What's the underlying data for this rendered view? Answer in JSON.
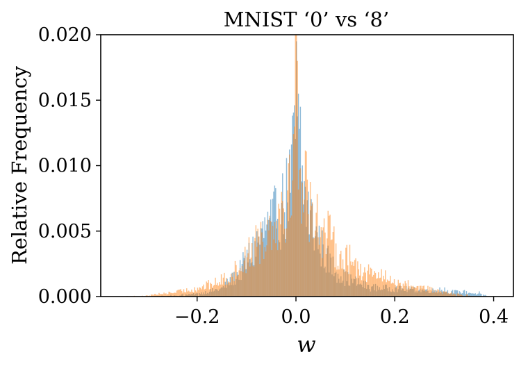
{
  "chart_data": {
    "type": "histogram",
    "title": "MNIST ‘0’ vs ‘8’",
    "xlabel": "w",
    "ylabel": "Relative Frequency",
    "xlim": [
      -0.395,
      0.44
    ],
    "ylim": [
      0,
      0.02
    ],
    "x_ticks": [
      -0.2,
      0.0,
      0.2,
      0.4
    ],
    "x_tick_labels": [
      "−0.2",
      "0.0",
      "0.2",
      "0.4"
    ],
    "y_ticks": [
      0.0,
      0.005,
      0.01,
      0.015,
      0.02
    ],
    "y_tick_labels": [
      "0.000",
      "0.005",
      "0.010",
      "0.015",
      "0.020"
    ],
    "grid": false,
    "legend": "none",
    "bin_width": 0.002,
    "series": [
      {
        "color": "#1f77b4",
        "alpha": 0.5,
        "range": [
          -0.3,
          0.4
        ],
        "profile": [
          [
            -0.3,
            0.0
          ],
          [
            -0.25,
            0.0001
          ],
          [
            -0.2,
            0.0002
          ],
          [
            -0.15,
            0.0006
          ],
          [
            -0.12,
            0.0016
          ],
          [
            -0.09,
            0.0033
          ],
          [
            -0.07,
            0.0046
          ],
          [
            -0.05,
            0.0055
          ],
          [
            -0.03,
            0.0065
          ],
          [
            -0.02,
            0.0074
          ],
          [
            -0.01,
            0.009
          ],
          [
            0.0,
            0.0125
          ],
          [
            0.01,
            0.0095
          ],
          [
            0.02,
            0.0072
          ],
          [
            0.04,
            0.0048
          ],
          [
            0.06,
            0.003
          ],
          [
            0.08,
            0.002
          ],
          [
            0.1,
            0.0014
          ],
          [
            0.15,
            0.0007
          ],
          [
            0.2,
            0.0006
          ],
          [
            0.25,
            0.0005
          ],
          [
            0.3,
            0.0004
          ],
          [
            0.35,
            0.0003
          ],
          [
            0.4,
            0.0
          ]
        ],
        "spikes": [
          [
            0.0,
            0.0195
          ],
          [
            0.004,
            0.0155
          ],
          [
            0.008,
            0.0145
          ],
          [
            -0.06,
            0.0055
          ],
          [
            -0.05,
            0.0057
          ],
          [
            -0.04,
            0.0052
          ],
          [
            0.2,
            0.0007
          ],
          [
            0.23,
            0.0006
          ],
          [
            0.29,
            0.0007
          ],
          [
            0.3,
            0.0007
          ],
          [
            0.34,
            0.0005
          ],
          [
            0.37,
            0.0004
          ]
        ]
      },
      {
        "color": "#ff7f0e",
        "alpha": 0.5,
        "range": [
          -0.36,
          0.37
        ],
        "profile": [
          [
            -0.36,
            0.0
          ],
          [
            -0.3,
            0.0001
          ],
          [
            -0.25,
            0.0003
          ],
          [
            -0.2,
            0.0006
          ],
          [
            -0.15,
            0.0012
          ],
          [
            -0.12,
            0.002
          ],
          [
            -0.1,
            0.003
          ],
          [
            -0.08,
            0.004
          ],
          [
            -0.06,
            0.005
          ],
          [
            -0.04,
            0.006
          ],
          [
            -0.02,
            0.0075
          ],
          [
            -0.01,
            0.009
          ],
          [
            0.0,
            0.012
          ],
          [
            0.01,
            0.0095
          ],
          [
            0.02,
            0.008
          ],
          [
            0.04,
            0.006
          ],
          [
            0.06,
            0.0048
          ],
          [
            0.08,
            0.0038
          ],
          [
            0.1,
            0.003
          ],
          [
            0.12,
            0.0024
          ],
          [
            0.15,
            0.0018
          ],
          [
            0.2,
            0.0011
          ],
          [
            0.25,
            0.0007
          ],
          [
            0.3,
            0.0003
          ],
          [
            0.35,
            0.0001
          ],
          [
            0.37,
            0.0
          ]
        ],
        "spikes": [
          [
            0.0,
            0.02
          ],
          [
            -0.002,
            0.02
          ],
          [
            0.002,
            0.018
          ],
          [
            -0.04,
            0.0058
          ],
          [
            0.04,
            0.0064
          ],
          [
            0.05,
            0.0053
          ],
          [
            0.13,
            0.0025
          ],
          [
            0.15,
            0.0022
          ],
          [
            0.18,
            0.002
          ],
          [
            -0.1,
            0.003
          ],
          [
            -0.08,
            0.0038
          ],
          [
            0.09,
            0.0035
          ]
        ]
      }
    ]
  }
}
